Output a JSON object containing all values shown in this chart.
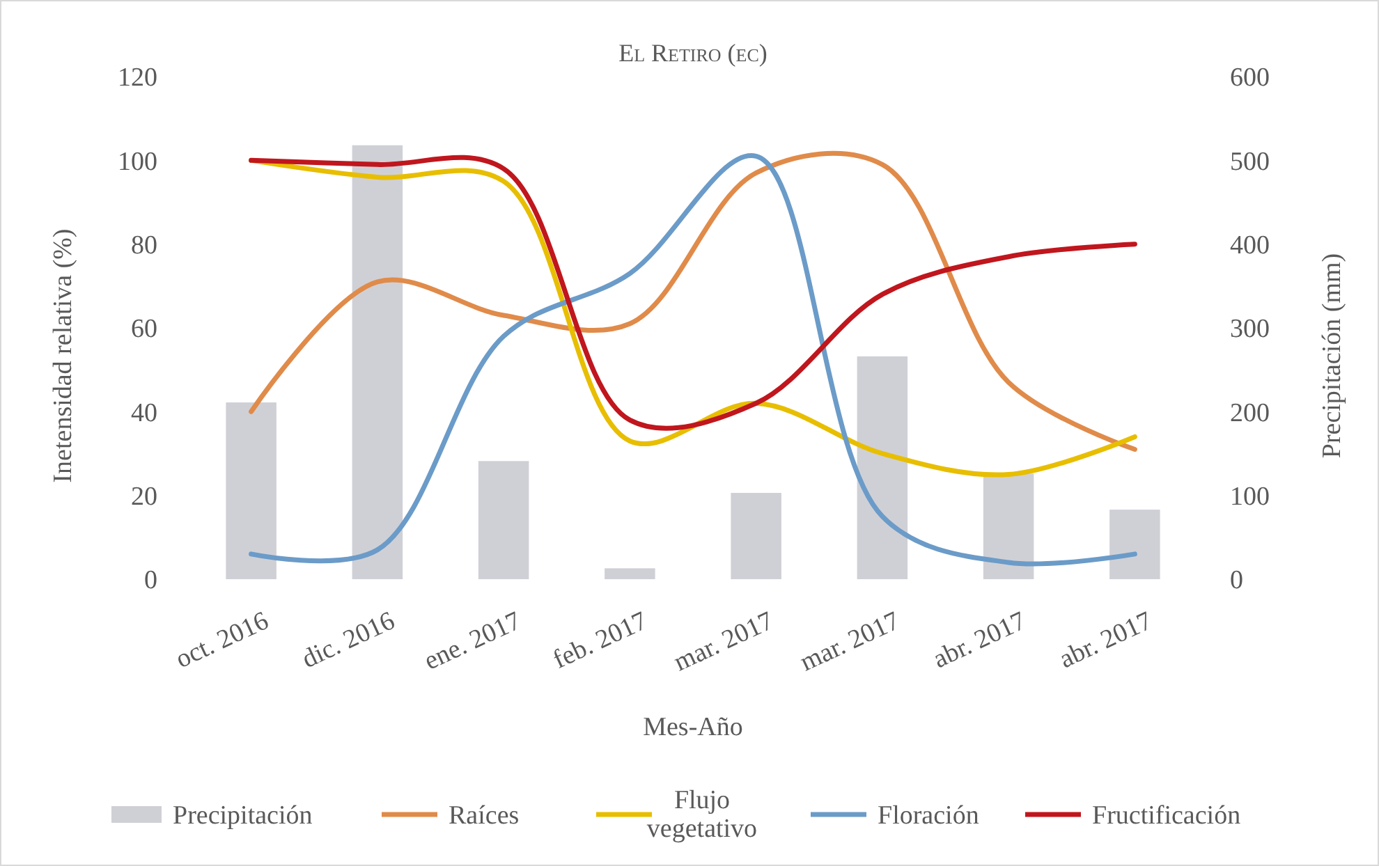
{
  "chart_data": {
    "type": "bar",
    "title": "El Retiro (ec)",
    "xlabel": "Mes-Año",
    "ylabel": "Inetensidad relativa (%)",
    "y2label": "Precipitación (mm)",
    "categories": [
      "oct. 2016",
      "dic. 2016",
      "ene. 2017",
      "feb. 2017",
      "mar. 2017",
      "mar. 2017",
      "abr. 2017",
      "abr. 2017"
    ],
    "series": [
      {
        "name": "Precipitación",
        "axis": "y2",
        "color": "#cfd0d6",
        "values": [
          211,
          518,
          141,
          13,
          103,
          266,
          126,
          83
        ]
      },
      {
        "name": "Raíces",
        "type": "line",
        "color": "#e08b4a",
        "values": [
          40,
          71,
          63,
          61,
          97,
          99,
          47,
          31
        ]
      },
      {
        "name": "Flujo vegetativo",
        "type": "line",
        "color": "#e8be00",
        "values": [
          100,
          96,
          95,
          33,
          42,
          30,
          25,
          34
        ]
      },
      {
        "name": "Floración",
        "type": "line",
        "color": "#6b9bc8",
        "values": [
          6,
          7,
          58,
          73,
          101,
          15,
          4,
          6
        ]
      },
      {
        "name": "Fructificación",
        "type": "line",
        "color": "#c0161d",
        "values": [
          100,
          99,
          98,
          38,
          42,
          68,
          77,
          80
        ]
      }
    ],
    "ylim": [
      0,
      120
    ],
    "yticks": [
      0,
      20,
      40,
      60,
      80,
      100,
      120
    ],
    "y2lim": [
      0,
      600
    ],
    "y2ticks": [
      0,
      100,
      200,
      300,
      400,
      500,
      600
    ],
    "grid": false,
    "legend": "bottom"
  }
}
